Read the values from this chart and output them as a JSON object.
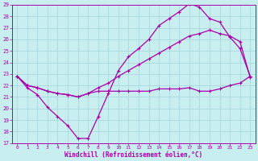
{
  "xlabel": "Windchill (Refroidissement éolien,°C)",
  "bg_color": "#c8eef0",
  "grid_color": "#a8d8dc",
  "line_color": "#aa00aa",
  "xlim": [
    -0.5,
    23.5
  ],
  "ylim": [
    17,
    29
  ],
  "xticks": [
    0,
    1,
    2,
    3,
    4,
    5,
    6,
    7,
    8,
    9,
    10,
    11,
    12,
    13,
    14,
    15,
    16,
    17,
    18,
    19,
    20,
    21,
    22,
    23
  ],
  "yticks": [
    17,
    18,
    19,
    20,
    21,
    22,
    23,
    24,
    25,
    26,
    27,
    28,
    29
  ],
  "line1_x": [
    0,
    1,
    2,
    3,
    4,
    5,
    6,
    7,
    8,
    9,
    10,
    11,
    12,
    13,
    14,
    15,
    16,
    17,
    18,
    19,
    20,
    21,
    22,
    23
  ],
  "line1_y": [
    22.8,
    21.8,
    21.2,
    20.1,
    19.3,
    18.5,
    17.4,
    17.4,
    19.3,
    21.3,
    23.3,
    24.5,
    25.2,
    26.0,
    27.2,
    27.8,
    28.4,
    29.1,
    28.8,
    27.8,
    27.5,
    26.2,
    25.2,
    22.8
  ],
  "line2_x": [
    0,
    1,
    2,
    3,
    4,
    5,
    6,
    7,
    8,
    9,
    10,
    11,
    12,
    13,
    14,
    15,
    16,
    17,
    18,
    19,
    20,
    21,
    22,
    23
  ],
  "line2_y": [
    22.8,
    22.0,
    21.8,
    21.5,
    21.3,
    21.2,
    21.0,
    21.3,
    21.8,
    22.2,
    22.8,
    23.3,
    23.8,
    24.3,
    24.8,
    25.3,
    25.8,
    26.3,
    26.5,
    26.8,
    26.5,
    26.3,
    25.8,
    22.7
  ],
  "line3_x": [
    0,
    1,
    2,
    3,
    4,
    5,
    6,
    7,
    8,
    9,
    10,
    11,
    12,
    13,
    14,
    15,
    16,
    17,
    18,
    19,
    20,
    21,
    22,
    23
  ],
  "line3_y": [
    22.8,
    22.0,
    21.8,
    21.5,
    21.3,
    21.2,
    21.0,
    21.3,
    21.5,
    21.5,
    21.5,
    21.5,
    21.5,
    21.5,
    21.7,
    21.7,
    21.7,
    21.8,
    21.5,
    21.5,
    21.7,
    22.0,
    22.2,
    22.8
  ]
}
